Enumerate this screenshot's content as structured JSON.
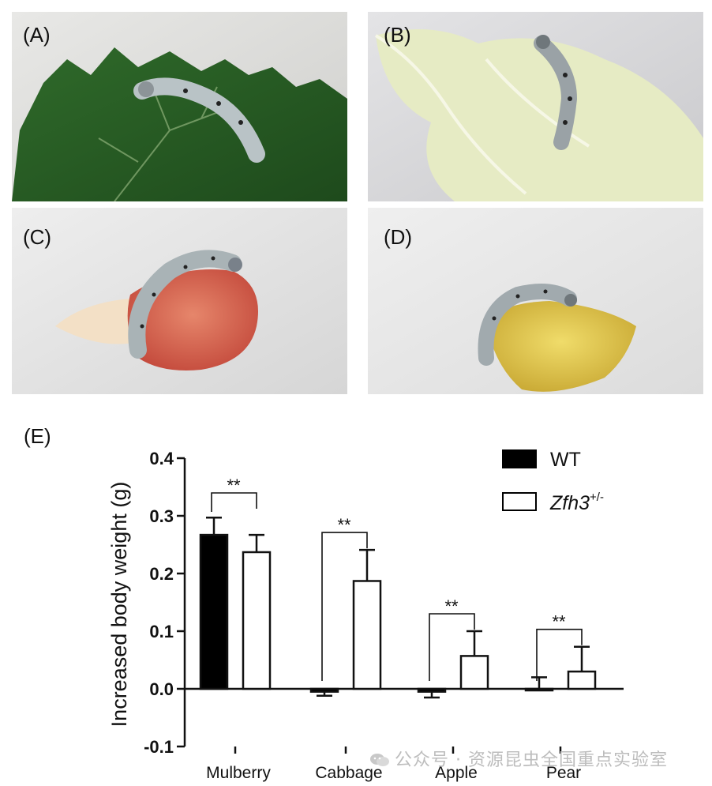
{
  "panels": [
    {
      "label": "(A)",
      "subject": "silkworm on mulberry leaf"
    },
    {
      "label": "(B)",
      "subject": "silkworm on cabbage leaf"
    },
    {
      "label": "(C)",
      "subject": "silkworm on apple slice"
    },
    {
      "label": "(D)",
      "subject": "silkworm on pear peel"
    }
  ],
  "chart_panel_label": "(E)",
  "watermark": "公众号 · 资源昆虫全国重点实验室",
  "colors": {
    "wt": "#000000",
    "mutant": "#ffffff",
    "axis": "#111111"
  },
  "chart_data": {
    "type": "bar",
    "title": "",
    "ylabel": "Increased body weight (g)",
    "xlabel": "",
    "ylim": [
      -0.1,
      0.4
    ],
    "yticks": [
      -0.1,
      0.0,
      0.1,
      0.2,
      0.3,
      0.4
    ],
    "ytick_labels": [
      "-0.1",
      "0.0",
      "0.1",
      "0.2",
      "0.3",
      "0.4"
    ],
    "categories": [
      "Mulberry",
      "Cabbage",
      "Apple",
      "Pear"
    ],
    "series": [
      {
        "name": "WT",
        "values": [
          0.267,
          -0.005,
          -0.005,
          0.0
        ],
        "errors": [
          0.03,
          0.007,
          0.01,
          0.02
        ]
      },
      {
        "name": "Zfh3",
        "name_sup": "+/-",
        "values": [
          0.237,
          0.187,
          0.057,
          0.03
        ],
        "errors": [
          0.03,
          0.054,
          0.043,
          0.043
        ]
      }
    ],
    "significance": [
      "**",
      "**",
      "**",
      "**"
    ],
    "legend_position": "top-right"
  }
}
